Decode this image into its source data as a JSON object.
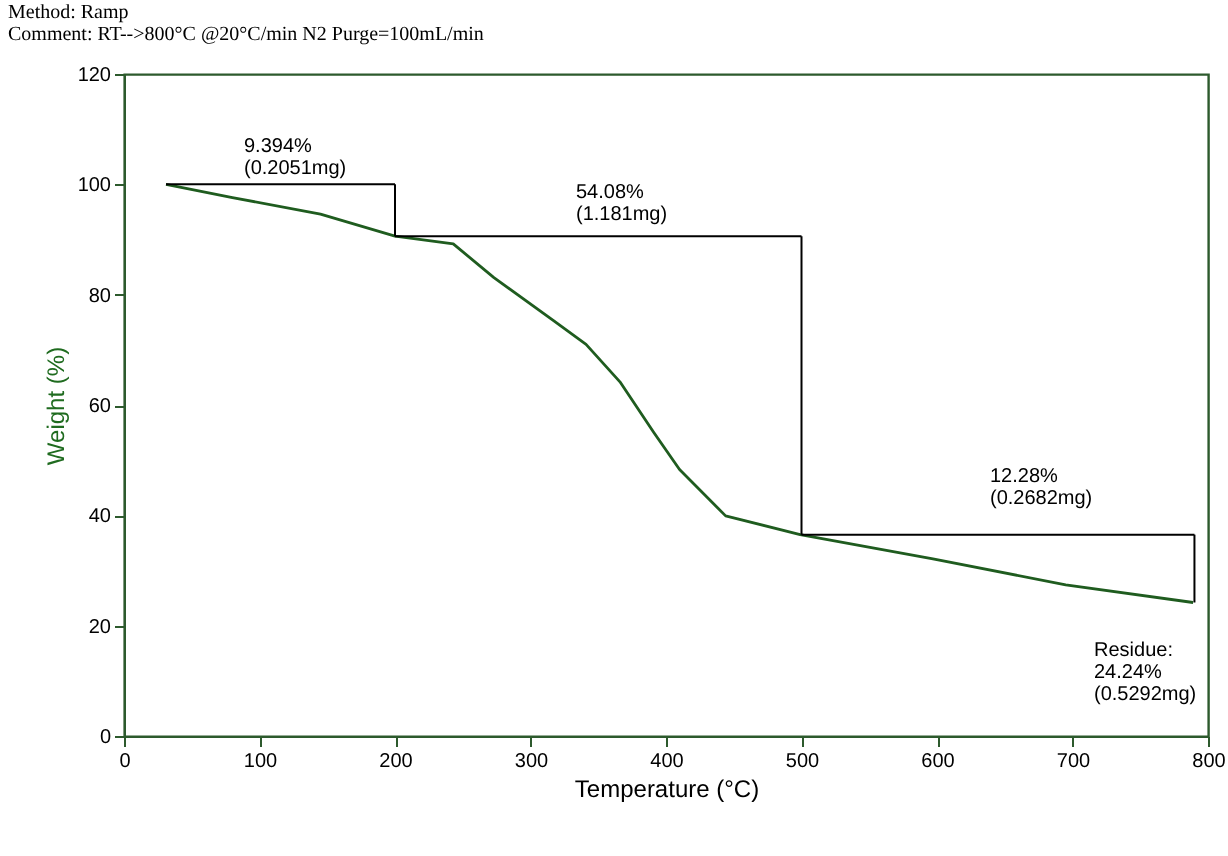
{
  "chart_data": {
    "type": "line",
    "title": "Method: Ramp",
    "subtitle": "Comment: RT-->800°C @20°C/min N2 Purge=100mL/min",
    "xlabel": "Temperature (°C)",
    "ylabel": "Weight (%)",
    "xlim": [
      0,
      800
    ],
    "xticks": [
      0,
      100,
      200,
      300,
      400,
      500,
      600,
      700,
      800
    ],
    "ylim": [
      0,
      120
    ],
    "yticks": [
      0,
      20,
      40,
      60,
      80,
      100,
      120
    ],
    "grid": false,
    "series": [
      {
        "color": "#1f5c1f",
        "x": [
          31,
          80,
          145,
          200,
          243,
          273,
          317,
          341,
          366,
          391,
          410,
          444,
          499,
          597,
          695,
          789
        ],
        "values": [
          100,
          97.6,
          94.6,
          90.6,
          89.2,
          83.1,
          75.3,
          71,
          64.2,
          55,
          48.3,
          39.9,
          36.5,
          32.1,
          27.4,
          24.2
        ]
      },
      {
        "color": "#000000",
        "x": [
          31,
          200
        ],
        "values": [
          100,
          100
        ]
      },
      {
        "color": "#000000",
        "x": [
          200,
          200
        ],
        "values": [
          100,
          90.6
        ]
      },
      {
        "color": "#000000",
        "x": [
          200,
          500
        ],
        "values": [
          90.6,
          90.6
        ]
      },
      {
        "color": "#000000",
        "x": [
          500,
          500
        ],
        "values": [
          90.6,
          36.5
        ]
      },
      {
        "color": "#000000",
        "x": [
          500,
          790
        ],
        "values": [
          36.5,
          36.5
        ]
      },
      {
        "color": "#000000",
        "x": [
          790,
          790
        ],
        "values": [
          36.5,
          24.2
        ]
      }
    ],
    "annotations": [
      "9.394%\n(0.2051mg)",
      "54.08%\n(1.181mg)",
      "12.28%\n(0.2682mg)",
      "Residue:\n24.24%\n(0.5292mg)"
    ]
  }
}
